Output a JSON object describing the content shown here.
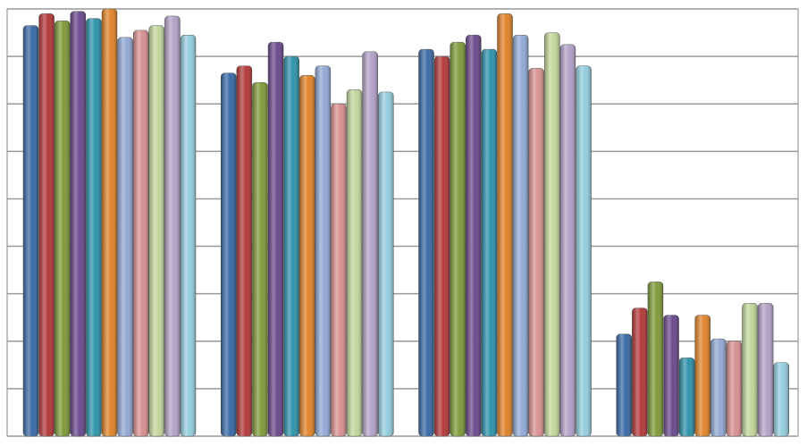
{
  "chart_data": {
    "type": "bar",
    "categories": [
      null,
      null,
      null,
      null
    ],
    "ylim": [
      0,
      9
    ],
    "yticks": [
      0,
      1,
      2,
      3,
      4,
      5,
      6,
      7,
      8,
      9
    ],
    "grid": true,
    "series": [
      {
        "color": "#3a6aa5",
        "values": [
          8.65,
          7.65,
          8.15,
          2.15
        ]
      },
      {
        "color": "#b33a3a",
        "values": [
          8.9,
          7.8,
          8.0,
          2.7
        ]
      },
      {
        "color": "#7f9a3a",
        "values": [
          8.75,
          7.45,
          8.3,
          3.25
        ]
      },
      {
        "color": "#6a4a8c",
        "values": [
          8.95,
          8.3,
          8.45,
          2.55
        ]
      },
      {
        "color": "#2f93ab",
        "values": [
          8.8,
          8.0,
          8.15,
          1.65
        ]
      },
      {
        "color": "#e0832a",
        "values": [
          9.0,
          7.6,
          8.9,
          2.55
        ]
      },
      {
        "color": "#93a9d6",
        "values": [
          8.4,
          7.8,
          8.45,
          2.05
        ]
      },
      {
        "color": "#d99090",
        "values": [
          8.55,
          7.0,
          7.75,
          2.0
        ]
      },
      {
        "color": "#c3d69b",
        "values": [
          8.65,
          7.3,
          8.5,
          2.8
        ]
      },
      {
        "color": "#b3a2c7",
        "values": [
          8.85,
          8.1,
          8.25,
          2.8
        ]
      },
      {
        "color": "#93cddd",
        "values": [
          8.45,
          7.25,
          7.8,
          1.55
        ]
      }
    ]
  }
}
